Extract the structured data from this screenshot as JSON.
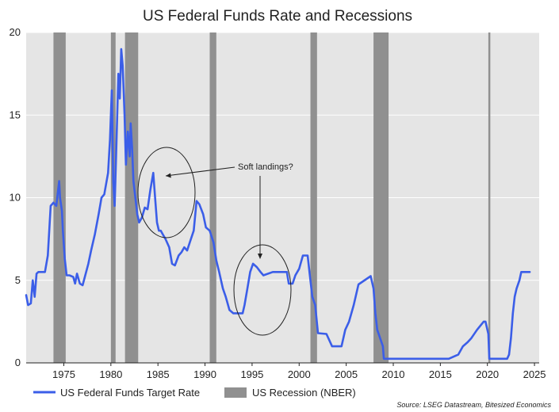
{
  "chart_data": {
    "type": "line",
    "title": "US Federal Funds Rate and Recessions",
    "xlabel": "",
    "ylabel": "",
    "xlim": [
      1971,
      2025.5
    ],
    "ylim": [
      0,
      20
    ],
    "x_ticks": [
      1975,
      1980,
      1985,
      1990,
      1995,
      2000,
      2005,
      2010,
      2015,
      2020,
      2025
    ],
    "y_ticks": [
      0,
      5,
      10,
      15,
      20
    ],
    "grid": true,
    "legend_placement": "bottom-left",
    "series": [
      {
        "name": "US Federal Funds Target Rate",
        "color": "#3b5ee8",
        "x": [
          1971.0,
          1971.2,
          1971.5,
          1971.7,
          1971.9,
          1972.1,
          1972.3,
          1973.0,
          1973.3,
          1973.6,
          1973.9,
          1974.2,
          1974.5,
          1974.6,
          1974.8,
          1974.9,
          1975.1,
          1975.3,
          1975.6,
          1976.0,
          1976.2,
          1976.4,
          1976.7,
          1977.0,
          1977.6,
          1977.9,
          1978.3,
          1978.7,
          1979.0,
          1979.3,
          1979.7,
          1979.9,
          1980.1,
          1980.25,
          1980.4,
          1980.55,
          1980.8,
          1980.95,
          1981.1,
          1981.25,
          1981.45,
          1981.6,
          1981.8,
          1982.0,
          1982.1,
          1982.25,
          1982.4,
          1982.6,
          1982.8,
          1983.0,
          1983.3,
          1983.6,
          1983.9,
          1984.2,
          1984.5,
          1984.7,
          1984.9,
          1985.1,
          1985.3,
          1985.5,
          1985.8,
          1986.2,
          1986.5,
          1986.8,
          1987.2,
          1987.5,
          1987.8,
          1988.1,
          1988.5,
          1988.8,
          1989.1,
          1989.4,
          1989.8,
          1990.1,
          1990.5,
          1990.9,
          1991.2,
          1991.5,
          1991.9,
          1992.2,
          1992.6,
          1993.0,
          1994.0,
          1994.2,
          1994.5,
          1994.8,
          1995.1,
          1995.5,
          1995.9,
          1996.2,
          1997.2,
          1998.7,
          1998.9,
          1999.3,
          1999.6,
          2000.0,
          2000.4,
          2000.9,
          2001.1,
          2001.4,
          2001.7,
          2002.0,
          2002.9,
          2003.5,
          2004.5,
          2004.9,
          2005.3,
          2005.8,
          2006.3,
          2007.6,
          2007.9,
          2008.1,
          2008.3,
          2008.9,
          2009.0,
          2015.9,
          2016.9,
          2017.4,
          2017.9,
          2018.3,
          2018.9,
          2019.6,
          2019.8,
          2020.1,
          2020.2,
          2022.1,
          2022.3,
          2022.5,
          2022.7,
          2022.9,
          2023.1,
          2023.4,
          2023.6,
          2024.5
        ],
        "values": [
          4.1,
          3.5,
          3.6,
          5.0,
          4.0,
          5.4,
          5.5,
          5.5,
          6.5,
          9.5,
          9.7,
          9.5,
          11.0,
          10.0,
          9.2,
          8.0,
          6.3,
          5.3,
          5.3,
          5.2,
          4.8,
          5.4,
          4.8,
          4.7,
          6.0,
          6.8,
          7.8,
          9.0,
          10.0,
          10.2,
          11.5,
          13.5,
          16.5,
          11.0,
          9.5,
          12.5,
          17.5,
          16.0,
          19.0,
          18.0,
          15.0,
          12.0,
          14.0,
          12.5,
          14.5,
          13.0,
          11.0,
          10.0,
          9.0,
          8.5,
          8.8,
          9.4,
          9.3,
          10.5,
          11.5,
          10.0,
          8.5,
          8.0,
          8.0,
          7.8,
          7.5,
          7.0,
          6.0,
          5.9,
          6.5,
          6.7,
          7.0,
          6.8,
          7.5,
          8.0,
          9.8,
          9.6,
          9.0,
          8.2,
          8.0,
          7.3,
          6.2,
          5.5,
          4.5,
          4.0,
          3.2,
          3.0,
          3.0,
          3.5,
          4.5,
          5.5,
          6.0,
          5.8,
          5.5,
          5.3,
          5.5,
          5.5,
          4.8,
          4.8,
          5.3,
          5.7,
          6.5,
          6.5,
          5.5,
          4.0,
          3.5,
          1.8,
          1.75,
          1.0,
          1.0,
          2.0,
          2.5,
          3.5,
          4.75,
          5.25,
          4.5,
          3.0,
          2.0,
          1.0,
          0.25,
          0.25,
          0.5,
          1.0,
          1.25,
          1.5,
          2.0,
          2.5,
          2.5,
          1.75,
          0.25,
          0.25,
          0.5,
          1.5,
          3.0,
          4.0,
          4.5,
          5.0,
          5.5,
          5.5
        ]
      }
    ],
    "recessions": {
      "name": "US Recession (NBER)",
      "color": "#909090",
      "periods": [
        [
          1973.9,
          1975.2
        ],
        [
          1980.0,
          1980.5
        ],
        [
          1981.5,
          1982.9
        ],
        [
          1990.5,
          1991.2
        ],
        [
          2001.2,
          2001.9
        ],
        [
          2007.9,
          2009.5
        ],
        [
          2020.1,
          2020.3
        ]
      ]
    },
    "annotations": [
      {
        "text": "Soft landings?"
      }
    ],
    "source_note": "Source: LSEG Datastream, Bitesized Economics"
  }
}
